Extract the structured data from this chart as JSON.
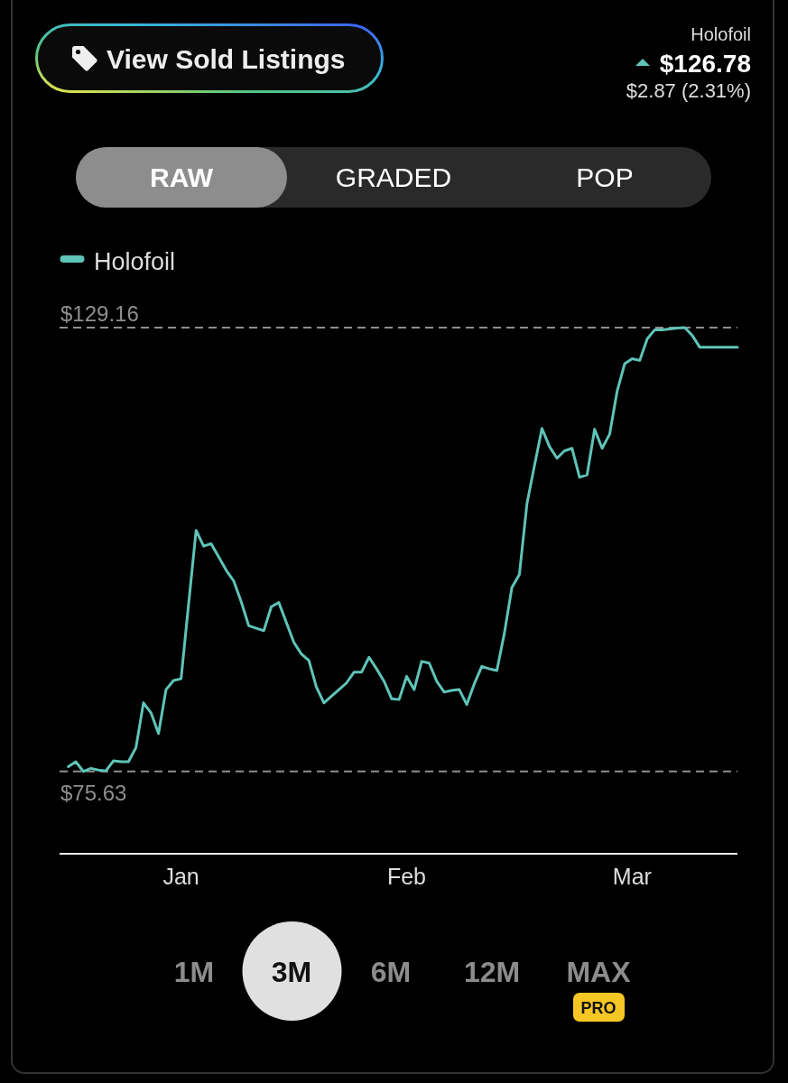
{
  "chart_data": {
    "type": "line",
    "categories": [
      null,
      null,
      null,
      null,
      null,
      null,
      null,
      null,
      null,
      null,
      null,
      null,
      null,
      null,
      null,
      "Jan",
      null,
      null,
      null,
      null,
      null,
      null,
      null,
      null,
      null,
      null,
      null,
      null,
      null,
      null,
      null,
      null,
      null,
      null,
      null,
      null,
      null,
      null,
      null,
      null,
      null,
      null,
      null,
      null,
      null,
      "Feb",
      null,
      null,
      null,
      null,
      null,
      null,
      null,
      null,
      null,
      null,
      null,
      null,
      null,
      null,
      null,
      null,
      null,
      null,
      null,
      null,
      null,
      null,
      null,
      null,
      null,
      null,
      null,
      null,
      null,
      "Mar",
      null,
      null,
      null,
      null,
      null,
      null,
      null,
      null,
      null,
      null,
      null,
      null,
      null,
      null
    ],
    "series": [
      {
        "name": "Holofoil",
        "color": "#5fc4b8",
        "values": [
          76.2,
          76.8,
          75.63,
          76.0,
          75.8,
          75.7,
          76.9,
          76.8,
          76.8,
          78.5,
          83.9,
          82.7,
          80.2,
          85.5,
          86.6,
          86.8,
          95.8,
          104.7,
          102.8,
          103.1,
          101.5,
          99.9,
          98.6,
          96.1,
          93.2,
          92.9,
          92.6,
          95.5,
          96.0,
          93.6,
          91.2,
          89.8,
          89.0,
          85.8,
          83.9,
          84.7,
          85.5,
          86.3,
          87.6,
          87.6,
          89.4,
          88.0,
          86.5,
          84.4,
          84.3,
          87.1,
          85.5,
          88.9,
          88.7,
          86.5,
          85.2,
          85.4,
          85.5,
          83.7,
          86.2,
          88.3,
          88.0,
          87.8,
          92.3,
          97.8,
          99.4,
          107.9,
          112.5,
          117.0,
          114.8,
          113.4,
          114.3,
          114.6,
          111.1,
          111.4,
          116.9,
          114.6,
          116.3,
          121.5,
          124.8,
          125.4,
          125.2,
          127.8,
          128.9,
          128.9,
          129.0,
          129.1,
          129.16,
          128.2,
          126.78,
          126.78,
          126.78,
          126.78,
          126.78,
          126.78
        ]
      }
    ],
    "ylim": [
      65.7,
      129.16
    ],
    "tick_labels": "x",
    "ref_lines": [
      {
        "axis": "y",
        "value": 129.16,
        "label": "$129.16",
        "color": "#8e8e8e",
        "line_style": "dashed"
      },
      {
        "axis": "y",
        "value": 75.63,
        "label": "$75.63",
        "color": "#8e8e8e",
        "line_style": "dashed"
      }
    ],
    "legend": "top left",
    "annotations": [
      "View Sold Listings",
      "Holofoil",
      "$126.78",
      "$2.87 (2.31%)",
      "RAW",
      "GRADED",
      "POP",
      "1M",
      "3M",
      "6M",
      "12M",
      "MAX",
      "PRO"
    ]
  }
}
